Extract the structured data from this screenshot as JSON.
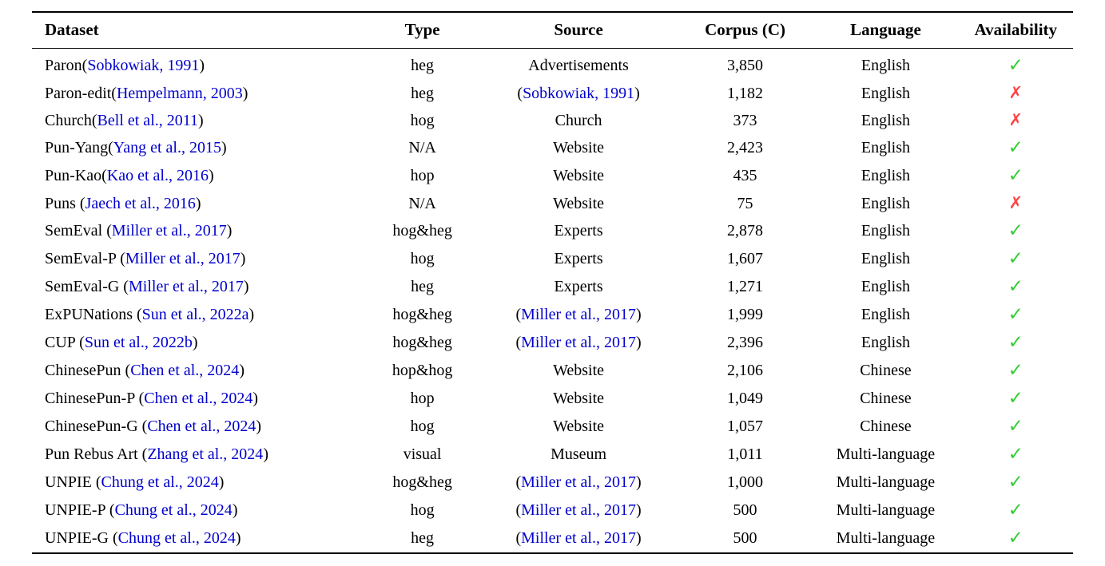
{
  "table": {
    "headers": [
      "Dataset",
      "Type",
      "Source",
      "Corpus (C)",
      "Language",
      "Availability"
    ],
    "colors": {
      "citation": "#0000CC",
      "check": "#33cc33",
      "cross": "#ff4444",
      "text": "#000000"
    },
    "symbols": {
      "available": "✓",
      "unavailable": "✗"
    },
    "rows": [
      {
        "dataset": [
          {
            "t": "Paron(",
            "s": "plain"
          },
          {
            "t": "Sobkowiak, 1991",
            "s": "cite"
          },
          {
            "t": ")",
            "s": "plain"
          }
        ],
        "type": "heg",
        "source": [
          {
            "t": "Advertisements",
            "s": "plain"
          }
        ],
        "corpus": "3,850",
        "language": "English",
        "availability": "yes"
      },
      {
        "dataset": [
          {
            "t": "Paron-edit(",
            "s": "plain"
          },
          {
            "t": "Hempelmann, 2003",
            "s": "cite"
          },
          {
            "t": ")",
            "s": "plain"
          }
        ],
        "type": "heg",
        "source": [
          {
            "t": "(",
            "s": "plain"
          },
          {
            "t": "Sobkowiak, 1991",
            "s": "cite"
          },
          {
            "t": ")",
            "s": "plain"
          }
        ],
        "corpus": "1,182",
        "language": "English",
        "availability": "no"
      },
      {
        "dataset": [
          {
            "t": "Church(",
            "s": "plain"
          },
          {
            "t": "Bell et al., 2011",
            "s": "cite"
          },
          {
            "t": ")",
            "s": "plain"
          }
        ],
        "type": "hog",
        "source": [
          {
            "t": "Church",
            "s": "plain"
          }
        ],
        "corpus": "373",
        "language": "English",
        "availability": "no"
      },
      {
        "dataset": [
          {
            "t": "Pun-Yang(",
            "s": "plain"
          },
          {
            "t": "Yang et al., 2015",
            "s": "cite"
          },
          {
            "t": ")",
            "s": "plain"
          }
        ],
        "type": "N/A",
        "source": [
          {
            "t": "Website",
            "s": "plain"
          }
        ],
        "corpus": "2,423",
        "language": "English",
        "availability": "yes"
      },
      {
        "dataset": [
          {
            "t": "Pun-Kao(",
            "s": "plain"
          },
          {
            "t": "Kao et al., 2016",
            "s": "cite"
          },
          {
            "t": ")",
            "s": "plain"
          }
        ],
        "type": "hop",
        "source": [
          {
            "t": "Website",
            "s": "plain"
          }
        ],
        "corpus": "435",
        "language": "English",
        "availability": "yes"
      },
      {
        "dataset": [
          {
            "t": "Puns (",
            "s": "plain"
          },
          {
            "t": "Jaech et al., 2016",
            "s": "cite"
          },
          {
            "t": ")",
            "s": "plain"
          }
        ],
        "type": "N/A",
        "source": [
          {
            "t": "Website",
            "s": "plain"
          }
        ],
        "corpus": "75",
        "language": "English",
        "availability": "no"
      },
      {
        "dataset": [
          {
            "t": "SemEval (",
            "s": "plain"
          },
          {
            "t": "Miller et al., 2017",
            "s": "cite"
          },
          {
            "t": ")",
            "s": "plain"
          }
        ],
        "type": "hog&heg",
        "source": [
          {
            "t": "Experts",
            "s": "plain"
          }
        ],
        "corpus": "2,878",
        "language": "English",
        "availability": "yes"
      },
      {
        "dataset": [
          {
            "t": "SemEval-P (",
            "s": "plain"
          },
          {
            "t": "Miller et al., 2017",
            "s": "cite"
          },
          {
            "t": ")",
            "s": "plain"
          }
        ],
        "type": "hog",
        "source": [
          {
            "t": "Experts",
            "s": "plain"
          }
        ],
        "corpus": "1,607",
        "language": "English",
        "availability": "yes"
      },
      {
        "dataset": [
          {
            "t": "SemEval-G (",
            "s": "plain"
          },
          {
            "t": "Miller et al., 2017",
            "s": "cite"
          },
          {
            "t": ")",
            "s": "plain"
          }
        ],
        "type": "heg",
        "source": [
          {
            "t": "Experts",
            "s": "plain"
          }
        ],
        "corpus": "1,271",
        "language": "English",
        "availability": "yes"
      },
      {
        "dataset": [
          {
            "t": "ExPUNations (",
            "s": "plain"
          },
          {
            "t": "Sun et al., 2022a",
            "s": "cite"
          },
          {
            "t": ")",
            "s": "plain"
          }
        ],
        "type": "hog&heg",
        "source": [
          {
            "t": "(",
            "s": "plain"
          },
          {
            "t": "Miller et al., 2017",
            "s": "cite"
          },
          {
            "t": ")",
            "s": "plain"
          }
        ],
        "corpus": "1,999",
        "language": "English",
        "availability": "yes"
      },
      {
        "dataset": [
          {
            "t": "CUP (",
            "s": "plain"
          },
          {
            "t": "Sun et al., 2022b",
            "s": "cite"
          },
          {
            "t": ")",
            "s": "plain"
          }
        ],
        "type": "hog&heg",
        "source": [
          {
            "t": "(",
            "s": "plain"
          },
          {
            "t": "Miller et al., 2017",
            "s": "cite"
          },
          {
            "t": ")",
            "s": "plain"
          }
        ],
        "corpus": "2,396",
        "language": "English",
        "availability": "yes"
      },
      {
        "dataset": [
          {
            "t": "ChinesePun (",
            "s": "plain"
          },
          {
            "t": "Chen et al., 2024",
            "s": "cite"
          },
          {
            "t": ")",
            "s": "plain"
          }
        ],
        "type": "hop&hog",
        "source": [
          {
            "t": "Website",
            "s": "plain"
          }
        ],
        "corpus": "2,106",
        "language": "Chinese",
        "availability": "yes"
      },
      {
        "dataset": [
          {
            "t": "ChinesePun-P (",
            "s": "plain"
          },
          {
            "t": "Chen et al., 2024",
            "s": "cite"
          },
          {
            "t": ")",
            "s": "plain"
          }
        ],
        "type": "hop",
        "source": [
          {
            "t": "Website",
            "s": "plain"
          }
        ],
        "corpus": "1,049",
        "language": "Chinese",
        "availability": "yes"
      },
      {
        "dataset": [
          {
            "t": "ChinesePun-G (",
            "s": "plain"
          },
          {
            "t": "Chen et al., 2024",
            "s": "cite"
          },
          {
            "t": ")",
            "s": "plain"
          }
        ],
        "type": "hog",
        "source": [
          {
            "t": "Website",
            "s": "plain"
          }
        ],
        "corpus": "1,057",
        "language": "Chinese",
        "availability": "yes"
      },
      {
        "dataset": [
          {
            "t": "Pun Rebus Art (",
            "s": "plain"
          },
          {
            "t": "Zhang et al., 2024",
            "s": "cite"
          },
          {
            "t": ")",
            "s": "plain"
          }
        ],
        "type": "visual",
        "source": [
          {
            "t": "Museum",
            "s": "plain"
          }
        ],
        "corpus": "1,011",
        "language": "Multi-language",
        "availability": "yes"
      },
      {
        "dataset": [
          {
            "t": "UNPIE (",
            "s": "plain"
          },
          {
            "t": "Chung et al., 2024",
            "s": "cite"
          },
          {
            "t": ")",
            "s": "plain"
          }
        ],
        "type": "hog&heg",
        "source": [
          {
            "t": "(",
            "s": "plain"
          },
          {
            "t": "Miller et al., 2017",
            "s": "cite"
          },
          {
            "t": ")",
            "s": "plain"
          }
        ],
        "corpus": "1,000",
        "language": "Multi-language",
        "availability": "yes"
      },
      {
        "dataset": [
          {
            "t": "UNPIE-P (",
            "s": "plain"
          },
          {
            "t": "Chung et al., 2024",
            "s": "cite"
          },
          {
            "t": ")",
            "s": "plain"
          }
        ],
        "type": "hog",
        "source": [
          {
            "t": "(",
            "s": "plain"
          },
          {
            "t": "Miller et al., 2017",
            "s": "cite"
          },
          {
            "t": ")",
            "s": "plain"
          }
        ],
        "corpus": "500",
        "language": "Multi-language",
        "availability": "yes"
      },
      {
        "dataset": [
          {
            "t": "UNPIE-G (",
            "s": "plain"
          },
          {
            "t": "Chung et al., 2024",
            "s": "cite"
          },
          {
            "t": ")",
            "s": "plain"
          }
        ],
        "type": "heg",
        "source": [
          {
            "t": "(",
            "s": "plain"
          },
          {
            "t": "Miller et al., 2017",
            "s": "cite"
          },
          {
            "t": ")",
            "s": "plain"
          }
        ],
        "corpus": "500",
        "language": "Multi-language",
        "availability": "yes"
      }
    ]
  }
}
